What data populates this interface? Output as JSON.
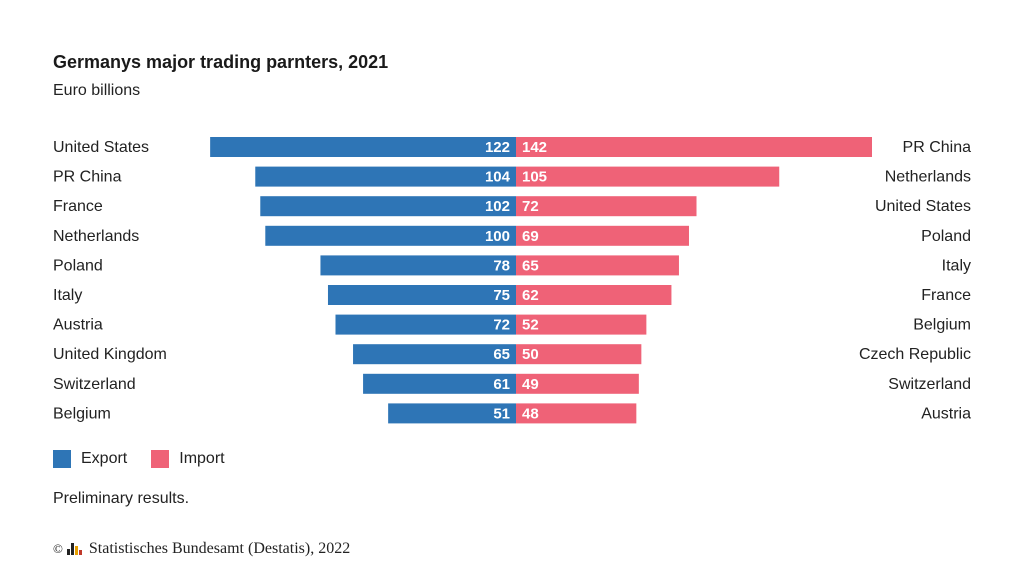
{
  "chart_data": {
    "type": "bar",
    "title": "Germanys major trading parnters, 2021",
    "subtitle": "Euro billions",
    "series": [
      {
        "name": "Export",
        "color": "#2e75b6",
        "categories": [
          "United States",
          "PR China",
          "France",
          "Netherlands",
          "Poland",
          "Italy",
          "Austria",
          "United Kingdom",
          "Switzerland",
          "Belgium"
        ],
        "values": [
          122,
          104,
          102,
          100,
          78,
          75,
          72,
          65,
          61,
          51
        ]
      },
      {
        "name": "Import",
        "color": "#ef6277",
        "categories": [
          "PR China",
          "Netherlands",
          "United States",
          "Poland",
          "Italy",
          "France",
          "Belgium",
          "Czech Republic",
          "Switzerland",
          "Austria"
        ],
        "values": [
          142,
          105,
          72,
          69,
          65,
          62,
          52,
          50,
          49,
          48
        ]
      }
    ],
    "xlim": [
      0,
      142
    ],
    "legend": [
      "Export",
      "Import"
    ],
    "note": "Preliminary results.",
    "source": "Statistisches Bundesamt (Destatis), 2022"
  }
}
